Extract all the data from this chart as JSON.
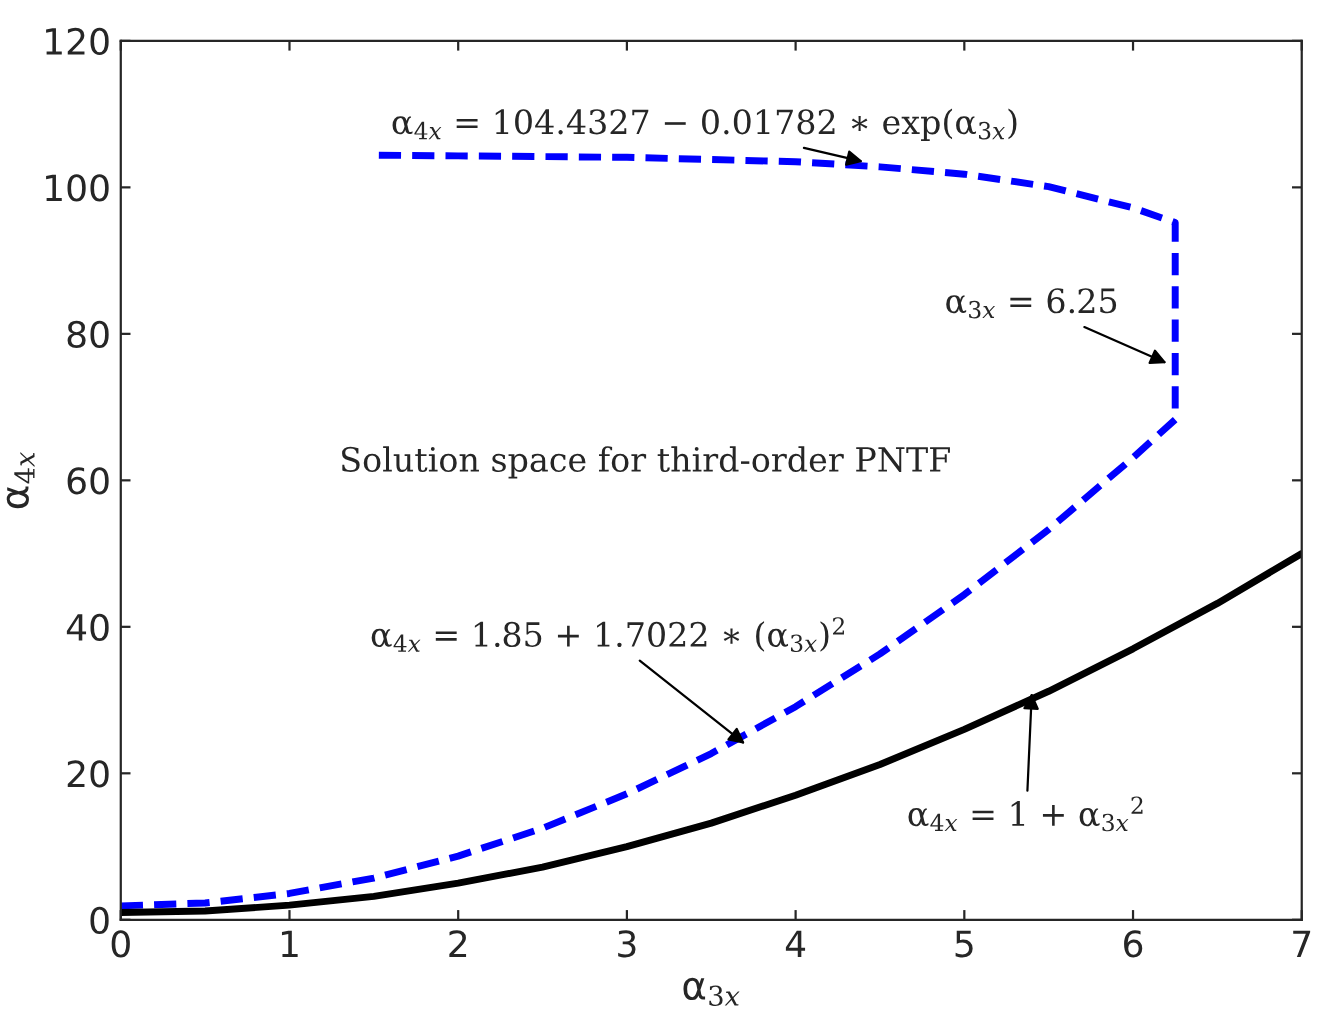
{
  "chart_data": {
    "type": "line",
    "xlabel": "α$_{3x}$",
    "ylabel": "α$_{4x}$",
    "xlim": [
      0,
      7
    ],
    "ylim": [
      0,
      120
    ],
    "xticks": [
      0,
      1,
      2,
      3,
      4,
      5,
      6,
      7
    ],
    "yticks": [
      0,
      20,
      40,
      60,
      80,
      100,
      120
    ],
    "grid": false,
    "legend": false,
    "marker": "none",
    "series": [
      {
        "color": "#0000ff",
        "line_style": "dashed",
        "x": [
          0,
          0.5,
          1,
          1.5,
          2,
          2.5,
          3,
          3.5,
          4,
          4.5,
          5,
          5.5,
          6,
          6.25,
          6.25,
          6,
          5.5,
          5,
          4.5,
          4,
          3.5,
          3,
          2.5,
          2,
          1.5
        ],
        "values": [
          1.9,
          2.3,
          3.6,
          5.7,
          8.7,
          12.5,
          17.2,
          22.7,
          29.1,
          36.3,
          44.4,
          53.3,
          63.1,
          68.3,
          95.2,
          97.2,
          100.1,
          101.8,
          102.8,
          103.5,
          103.8,
          104.1,
          104.2,
          104.3,
          104.4
        ]
      },
      {
        "color": "#000000",
        "line_style": "solid",
        "x": [
          0,
          0.5,
          1,
          1.5,
          2,
          2.5,
          3,
          3.5,
          4,
          4.5,
          5,
          5.5,
          6,
          6.5,
          7
        ],
        "values": [
          1,
          1.2,
          2,
          3.2,
          5,
          7.2,
          10,
          13.2,
          17,
          21.2,
          26,
          31.2,
          37,
          43.2,
          50
        ]
      }
    ],
    "annotations": [
      {
        "text": "α$_{4x}$ = 104.4327 − 0.01782 ∗ exp(α$_{3x}$)",
        "x": 4.4,
        "y": 103.5
      },
      {
        "text": "α$_{3x}$ = 6.25",
        "x": 6.2,
        "y": 76
      },
      "Solution space for third-order PNTF",
      {
        "text": "α$_{4x}$ = 1.85 + 1.7022 ∗ (α$_{3x}$)$^{2}$",
        "x": 3.7,
        "y": 24
      },
      {
        "text": "α$_{4x}$ = 1 + α$_{3x}$$^{2}$",
        "x": 5.4,
        "y": 31
      }
    ]
  }
}
